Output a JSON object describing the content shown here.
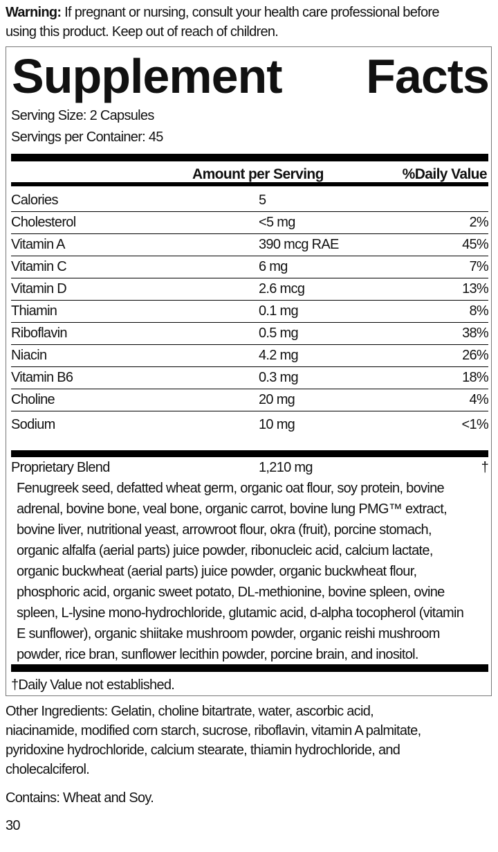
{
  "warning": {
    "label": "Warning:",
    "text": " If pregnant or nursing, consult your health care professional before",
    "text2": "using this product. Keep out of reach of children."
  },
  "title": {
    "word1": "Supplement",
    "word2": "Facts"
  },
  "serving_size": "Serving Size: 2 Capsules",
  "servings_per_container": "Servings per Container: 45",
  "header": {
    "amount": "Amount per Serving",
    "dv": "%Daily Value"
  },
  "nutrients": [
    {
      "name": "Calories",
      "amount": "5",
      "dv": ""
    },
    {
      "name": "Cholesterol",
      "amount": "<5 mg",
      "dv": "2%"
    },
    {
      "name": "Vitamin A",
      "amount": "390 mcg RAE",
      "dv": "45%"
    },
    {
      "name": "Vitamin C",
      "amount": "6 mg",
      "dv": "7%"
    },
    {
      "name": "Vitamin D",
      "amount": "2.6 mcg",
      "dv": "13%"
    },
    {
      "name": "Thiamin",
      "amount": "0.1 mg",
      "dv": "8%"
    },
    {
      "name": "Riboflavin",
      "amount": "0.5 mg",
      "dv": "38%"
    },
    {
      "name": "Niacin",
      "amount": "4.2 mg",
      "dv": "26%"
    },
    {
      "name": "Vitamin B6",
      "amount": "0.3 mg",
      "dv": "18%"
    },
    {
      "name": "Choline",
      "amount": "20 mg",
      "dv": "4%"
    },
    {
      "name": "Sodium",
      "amount": "10 mg",
      "dv": "<1%"
    }
  ],
  "blend": {
    "name": "Proprietary Blend",
    "amount": "1,210 mg",
    "dv": "†",
    "lines": [
      "Fenugreek seed, defatted wheat germ, organic oat flour, soy protein, bovine",
      "adrenal, bovine bone, veal bone, organic carrot, bovine lung PMG™ extract,",
      "bovine liver, nutritional yeast, arrowroot flour, okra (fruit), porcine stomach,",
      "organic alfalfa (aerial parts) juice powder, ribonucleic acid, calcium lactate,",
      "organic buckwheat (aerial parts) juice powder, organic buckwheat flour,",
      "phosphoric acid, organic sweet potato, DL-methionine, bovine spleen, ovine",
      "spleen, L-lysine mono-hydrochloride, glutamic acid, d-alpha tocopherol (vitamin",
      "E sunflower), organic shiitake mushroom powder, organic reishi mushroom",
      "powder, rice bran, sunflower lecithin powder, porcine brain, and inositol."
    ]
  },
  "footnote": "†Daily Value not established.",
  "other_ingredients": [
    "Other Ingredients: Gelatin, choline bitartrate, water, ascorbic acid,",
    "niacinamide, modified corn starch, sucrose, riboflavin, vitamin A palmitate,",
    "pyridoxine hydrochloride, calcium stearate, thiamin hydrochloride, and",
    "cholecalciferol."
  ],
  "contains": "Contains: Wheat and Soy.",
  "page_number": "30"
}
